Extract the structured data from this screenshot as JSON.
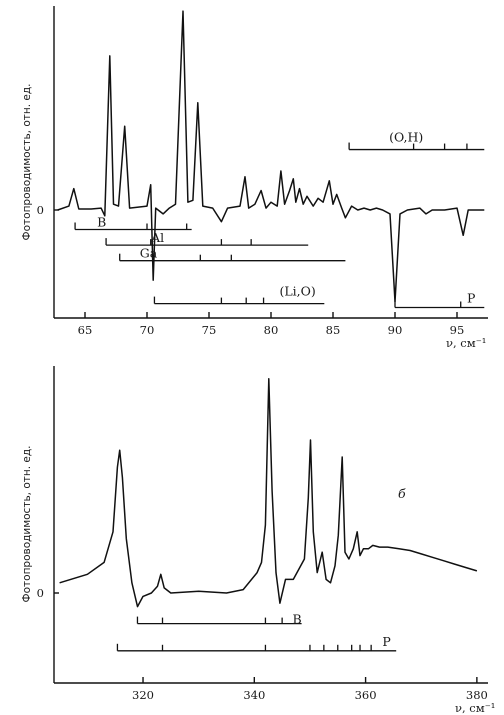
{
  "chart_data": [
    {
      "type": "line",
      "panel_letter": "",
      "ylabel": "Фотопроводимость, отн. ед.",
      "xlabel": "ν, см⁻¹",
      "xlim": [
        62.5,
        97.5
      ],
      "xticks": [
        65,
        70,
        75,
        80,
        85,
        90,
        95
      ],
      "yzero_label": "0",
      "grid": false,
      "series": [
        {
          "points": [
            [
              62.8,
              0
            ],
            [
              63.7,
              0.2
            ],
            [
              64.1,
              1.1
            ],
            [
              64.5,
              0.05
            ],
            [
              65.5,
              0.05
            ],
            [
              66.3,
              0.1
            ],
            [
              66.6,
              -0.3
            ],
            [
              67.0,
              7.9
            ],
            [
              67.3,
              0.3
            ],
            [
              67.7,
              0.2
            ],
            [
              68.2,
              4.3
            ],
            [
              68.6,
              0.1
            ],
            [
              69.3,
              0.15
            ],
            [
              70.0,
              0.2
            ],
            [
              70.3,
              1.3
            ],
            [
              70.5,
              -3.6
            ],
            [
              70.7,
              0.1
            ],
            [
              71.3,
              -0.2
            ],
            [
              71.8,
              0.1
            ],
            [
              72.3,
              0.3
            ],
            [
              72.9,
              10.2
            ],
            [
              73.3,
              0.4
            ],
            [
              73.7,
              0.5
            ],
            [
              74.1,
              5.5
            ],
            [
              74.5,
              0.2
            ],
            [
              75.3,
              0.1
            ],
            [
              76.0,
              -0.6
            ],
            [
              76.5,
              0.1
            ],
            [
              77.5,
              0.2
            ],
            [
              77.9,
              1.7
            ],
            [
              78.2,
              0.1
            ],
            [
              78.7,
              0.3
            ],
            [
              79.2,
              1.0
            ],
            [
              79.6,
              0.1
            ],
            [
              80.0,
              0.4
            ],
            [
              80.5,
              0.2
            ],
            [
              80.8,
              2.0
            ],
            [
              81.1,
              0.3
            ],
            [
              81.5,
              1.0
            ],
            [
              81.8,
              1.6
            ],
            [
              82.0,
              0.4
            ],
            [
              82.3,
              1.1
            ],
            [
              82.6,
              0.3
            ],
            [
              82.9,
              0.7
            ],
            [
              83.4,
              0.2
            ],
            [
              83.8,
              0.6
            ],
            [
              84.2,
              0.4
            ],
            [
              84.7,
              1.5
            ],
            [
              85.0,
              0.3
            ],
            [
              85.3,
              0.8
            ],
            [
              85.7,
              0.1
            ],
            [
              86.0,
              -0.4
            ],
            [
              86.5,
              0.2
            ],
            [
              87.0,
              0.0
            ],
            [
              87.5,
              0.1
            ],
            [
              88.0,
              0.0
            ],
            [
              88.5,
              0.1
            ],
            [
              89.0,
              0.0
            ],
            [
              89.6,
              -0.2
            ],
            [
              90.0,
              -4.7
            ],
            [
              90.4,
              -0.2
            ],
            [
              91.0,
              0.0
            ],
            [
              92.0,
              0.1
            ],
            [
              92.5,
              -0.2
            ],
            [
              93.0,
              0.0
            ],
            [
              94.0,
              0.0
            ],
            [
              95.0,
              0.1
            ],
            [
              95.5,
              -1.3
            ],
            [
              95.9,
              0.0
            ],
            [
              97.2,
              0.0
            ]
          ]
        }
      ],
      "ladders": [
        {
          "label": "(O,H)",
          "start": 86.3,
          "end": 97.2,
          "level": 3.1,
          "ticks": [
            91.5,
            94.0,
            95.8
          ]
        },
        {
          "label": "B",
          "start": 64.2,
          "end": 73.6,
          "level": -1.0,
          "ticks": [
            70.0,
            73.2
          ]
        },
        {
          "label": "Al",
          "start": 66.7,
          "end": 83.0,
          "level": -1.8,
          "ticks": [
            70.3,
            76.0,
            78.4
          ]
        },
        {
          "label": "Ga",
          "start": 67.8,
          "end": 86.0,
          "level": -2.6,
          "ticks": [
            70.5,
            74.3,
            76.8
          ]
        },
        {
          "label": "(Li,O)",
          "start": 70.6,
          "end": 84.3,
          "level": -4.8,
          "ticks": [
            76.0,
            78.0,
            79.4
          ]
        },
        {
          "label": "P",
          "start": 90.0,
          "end": 97.2,
          "level": -5.0,
          "ticks": [
            95.3
          ]
        }
      ]
    },
    {
      "type": "line",
      "panel_letter": "б",
      "ylabel": "Фотопроводимость, отн. ед.",
      "xlabel": "ν, см⁻¹",
      "xlim": [
        304,
        382
      ],
      "xticks": [
        320,
        340,
        360,
        380
      ],
      "yzero_label": "0",
      "grid": false,
      "series": [
        {
          "points": [
            [
              305,
              0.3
            ],
            [
              310,
              0.55
            ],
            [
              313,
              0.9
            ],
            [
              314.6,
              1.8
            ],
            [
              315.4,
              3.7
            ],
            [
              315.8,
              4.2
            ],
            [
              316.3,
              3.4
            ],
            [
              317.0,
              1.6
            ],
            [
              318.0,
              0.3
            ],
            [
              319.0,
              -0.4
            ],
            [
              320.0,
              -0.1
            ],
            [
              321.5,
              0.0
            ],
            [
              322.6,
              0.2
            ],
            [
              323.2,
              0.55
            ],
            [
              323.8,
              0.15
            ],
            [
              325,
              0.0
            ],
            [
              330,
              0.05
            ],
            [
              335,
              0.0
            ],
            [
              338,
              0.1
            ],
            [
              340.5,
              0.6
            ],
            [
              341.3,
              0.9
            ],
            [
              342.0,
              2.0
            ],
            [
              342.6,
              6.3
            ],
            [
              343.2,
              3.0
            ],
            [
              343.9,
              0.6
            ],
            [
              344.6,
              -0.3
            ],
            [
              345.6,
              0.4
            ],
            [
              347.0,
              0.4
            ],
            [
              349.0,
              1.0
            ],
            [
              349.7,
              2.8
            ],
            [
              350.1,
              4.5
            ],
            [
              350.6,
              1.8
            ],
            [
              351.3,
              0.6
            ],
            [
              352.2,
              1.2
            ],
            [
              352.9,
              0.4
            ],
            [
              353.7,
              0.3
            ],
            [
              354.5,
              0.8
            ],
            [
              355.1,
              1.7
            ],
            [
              355.8,
              4.0
            ],
            [
              356.3,
              1.2
            ],
            [
              357.0,
              1.0
            ],
            [
              357.8,
              1.3
            ],
            [
              358.5,
              1.8
            ],
            [
              359.0,
              1.1
            ],
            [
              359.6,
              1.3
            ],
            [
              360.5,
              1.3
            ],
            [
              361.3,
              1.4
            ],
            [
              362.5,
              1.35
            ],
            [
              364.0,
              1.35
            ],
            [
              366.0,
              1.3
            ],
            [
              368.0,
              1.25
            ],
            [
              370.0,
              1.15
            ],
            [
              372.0,
              1.05
            ],
            [
              374.0,
              0.95
            ],
            [
              376.0,
              0.85
            ],
            [
              378.0,
              0.75
            ],
            [
              380.0,
              0.65
            ]
          ]
        }
      ],
      "ladders": [
        {
          "label": "B",
          "start": 319.0,
          "end": 348.5,
          "level": -0.9,
          "ticks": [
            323.5,
            342.0,
            345.0
          ]
        },
        {
          "label": "P",
          "start": 315.4,
          "end": 365.5,
          "level": -1.7,
          "ticks": [
            323.5,
            342.0,
            350.0,
            352.5,
            355.0,
            357.5,
            359.0,
            361.0
          ]
        }
      ]
    }
  ]
}
